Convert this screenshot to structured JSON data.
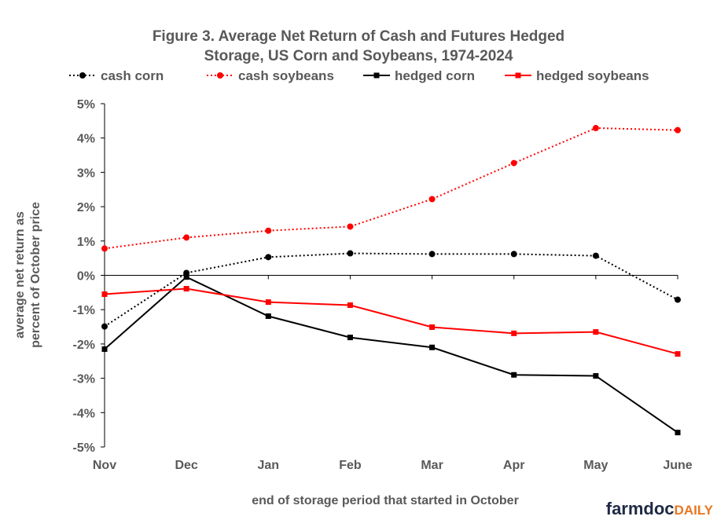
{
  "chart_data": {
    "type": "line",
    "title_line1": "Figure   3. Average Net Return of Cash and Futures Hedged",
    "title_line2": "Storage, US Corn and Soybeans, 1974-2024",
    "xlabel": "end of storage period that started in October",
    "ylabel_line1": "average net return as",
    "ylabel_line2": "percent of October price",
    "categories": [
      "Nov",
      "Dec",
      "Jan",
      "Feb",
      "Mar",
      "Apr",
      "May",
      "June"
    ],
    "ylim": [
      -5,
      5
    ],
    "yticks": [
      5,
      4,
      3,
      2,
      1,
      0,
      -1,
      -2,
      -3,
      -4,
      -5
    ],
    "ytick_labels": [
      "5%",
      "4%",
      "3%",
      "2%",
      "1%",
      "0%",
      "-1%",
      "-2%",
      "-3%",
      "-4%",
      "-5%"
    ],
    "grid": false,
    "legend_position": "top",
    "series": [
      {
        "name": "cash corn",
        "color": "#000000",
        "dash": true,
        "marker": "circle",
        "values": [
          -1.49,
          0.07,
          0.53,
          0.64,
          0.62,
          0.62,
          0.57,
          -0.71
        ]
      },
      {
        "name": "cash soybeans",
        "color": "#ff0000",
        "dash": true,
        "marker": "circle",
        "values": [
          0.78,
          1.1,
          1.3,
          1.42,
          2.22,
          3.27,
          4.29,
          4.23
        ]
      },
      {
        "name": "hedged corn",
        "color": "#000000",
        "dash": false,
        "marker": "square",
        "values": [
          -2.15,
          -0.05,
          -1.19,
          -1.81,
          -2.1,
          -2.9,
          -2.93,
          -4.58
        ]
      },
      {
        "name": "hedged soybeans",
        "color": "#ff0000",
        "dash": false,
        "marker": "square",
        "values": [
          -0.55,
          -0.39,
          -0.78,
          -0.87,
          -1.51,
          -1.69,
          -1.65,
          -2.29
        ]
      }
    ]
  },
  "logo": {
    "part1": "farmdoc",
    "part2": "DAILY"
  }
}
